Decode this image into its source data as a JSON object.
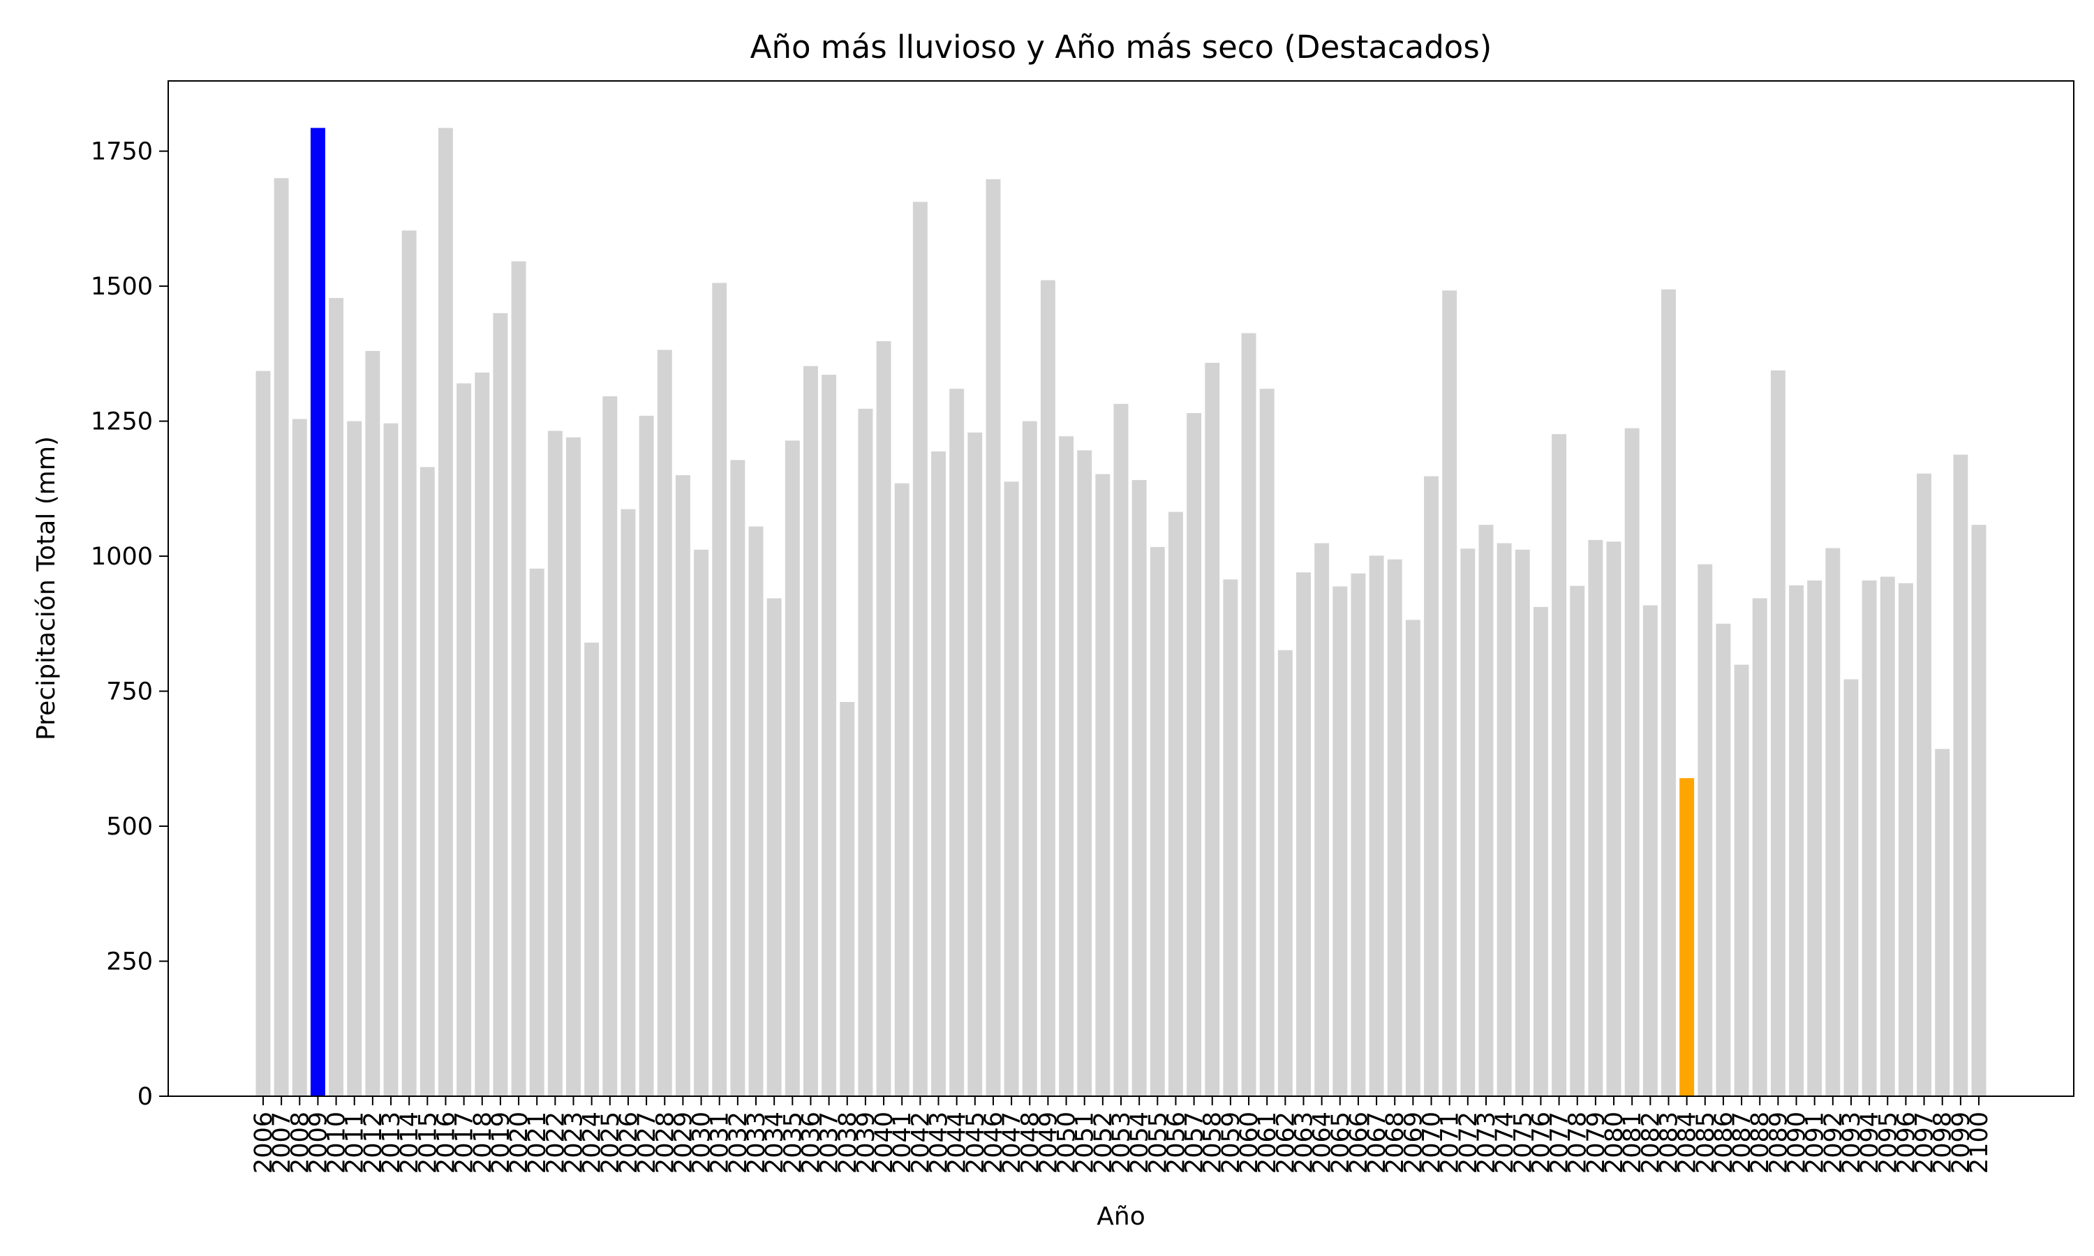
{
  "chart_data": {
    "type": "bar",
    "title": "Año más lluvioso y Año más seco (Destacados)",
    "xlabel": "Año",
    "ylabel": "Precipitación Total (mm)",
    "ylim": [
      0,
      1880
    ],
    "yticks": [
      0,
      250,
      500,
      750,
      1000,
      1250,
      1500,
      1750
    ],
    "grid": false,
    "legend": "none",
    "colors": {
      "default": "#d3d3d3",
      "wettest": "#0000ff",
      "driest": "#ffa500"
    },
    "highlights": {
      "wettest": "2009",
      "driest": "2084"
    },
    "categories": [
      "2006",
      "2007",
      "2008",
      "2009",
      "2010",
      "2011",
      "2012",
      "2013",
      "2014",
      "2015",
      "2016",
      "2017",
      "2018",
      "2019",
      "2020",
      "2021",
      "2022",
      "2023",
      "2024",
      "2025",
      "2026",
      "2027",
      "2028",
      "2029",
      "2030",
      "2031",
      "2032",
      "2033",
      "2034",
      "2035",
      "2036",
      "2037",
      "2038",
      "2039",
      "2040",
      "2041",
      "2042",
      "2043",
      "2044",
      "2045",
      "2046",
      "2047",
      "2048",
      "2049",
      "2050",
      "2051",
      "2052",
      "2053",
      "2054",
      "2055",
      "2056",
      "2057",
      "2058",
      "2059",
      "2060",
      "2061",
      "2062",
      "2063",
      "2064",
      "2065",
      "2066",
      "2067",
      "2068",
      "2069",
      "2070",
      "2071",
      "2072",
      "2073",
      "2074",
      "2075",
      "2076",
      "2077",
      "2078",
      "2079",
      "2080",
      "2081",
      "2082",
      "2083",
      "2084",
      "2085",
      "2086",
      "2087",
      "2088",
      "2089",
      "2090",
      "2091",
      "2092",
      "2093",
      "2094",
      "2095",
      "2096",
      "2097",
      "2098",
      "2099",
      "2100"
    ],
    "values": [
      1343,
      1700,
      1254,
      1793,
      1478,
      1250,
      1380,
      1246,
      1603,
      1165,
      1793,
      1320,
      1340,
      1450,
      1546,
      977,
      1232,
      1220,
      840,
      1296,
      1087,
      1260,
      1382,
      1150,
      1012,
      1506,
      1178,
      1055,
      922,
      1214,
      1352,
      1336,
      730,
      1273,
      1398,
      1135,
      1656,
      1194,
      1310,
      1229,
      1698,
      1138,
      1250,
      1511,
      1222,
      1196,
      1152,
      1282,
      1141,
      1017,
      1082,
      1265,
      1358,
      957,
      1413,
      1310,
      826,
      970,
      1024,
      944,
      968,
      1001,
      994,
      882,
      1148,
      1492,
      1014,
      1058,
      1024,
      1012,
      906,
      1226,
      945,
      1030,
      1027,
      1237,
      909,
      1494,
      589,
      985,
      875,
      799,
      922,
      1344,
      946,
      955,
      1015,
      772,
      955,
      962,
      950,
      1153,
      643,
      1188,
      1058
    ]
  }
}
